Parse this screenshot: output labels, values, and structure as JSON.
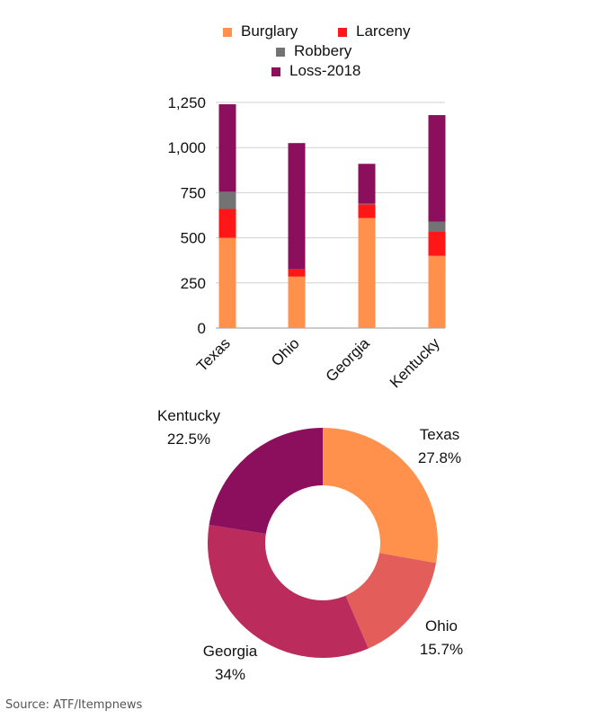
{
  "source": "Source: ATF/Itempnews",
  "chart_data": [
    {
      "type": "bar",
      "stacked": true,
      "categories": [
        "Texas",
        "Ohio",
        "Georgia",
        "Kentucky"
      ],
      "series": [
        {
          "name": "Burglary",
          "color": "#FF914D",
          "values": [
            500,
            285,
            610,
            400
          ]
        },
        {
          "name": "Larceny",
          "color": "#FF1616",
          "values": [
            160,
            40,
            75,
            135
          ]
        },
        {
          "name": "Robbery",
          "color": "#737373",
          "values": [
            95,
            0,
            5,
            55
          ]
        },
        {
          "name": "Loss-2018",
          "color": "#8C0F5E",
          "values": [
            485,
            700,
            220,
            590
          ]
        }
      ],
      "yticks": [
        "0",
        "250",
        "500",
        "750",
        "1,000",
        "1,250"
      ],
      "ylim": [
        0,
        1250
      ],
      "grid": true,
      "legend": "top"
    },
    {
      "type": "pie",
      "donut": true,
      "slices": [
        {
          "label": "Texas",
          "value": 27.8,
          "value_label": "27.8%",
          "color": "#FF914D"
        },
        {
          "label": "Ohio",
          "value": 15.7,
          "value_label": "15.7%",
          "color": "#E35D5B"
        },
        {
          "label": "Georgia",
          "value": 34,
          "value_label": "34%",
          "color": "#BB2B5C"
        },
        {
          "label": "Kentucky",
          "value": 22.5,
          "value_label": "22.5%",
          "color": "#8C0F5E"
        }
      ]
    }
  ]
}
